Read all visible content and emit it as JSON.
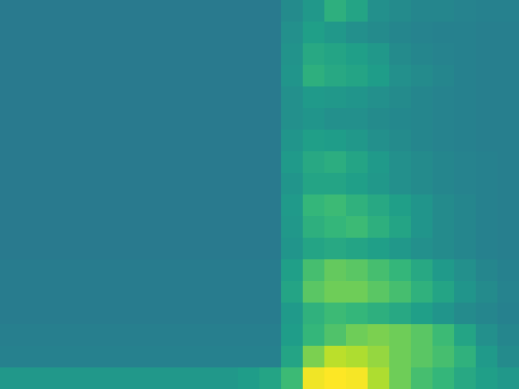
{
  "chart_data": {
    "type": "heatmap",
    "xlim": [
      0,
      24
    ],
    "ylim": [
      0,
      18
    ],
    "tick_labels": false,
    "color_range": [
      0,
      1
    ],
    "cells": [
      [
        0.41,
        0.41,
        0.41,
        0.41,
        0.41,
        0.41,
        0.41,
        0.41,
        0.41,
        0.41,
        0.41,
        0.41,
        0.41,
        0.48,
        0.53,
        0.63,
        0.58,
        0.5,
        0.48,
        0.46,
        0.46,
        0.45,
        0.44,
        0.44
      ],
      [
        0.41,
        0.41,
        0.41,
        0.41,
        0.41,
        0.41,
        0.41,
        0.41,
        0.41,
        0.41,
        0.41,
        0.41,
        0.41,
        0.5,
        0.56,
        0.53,
        0.5,
        0.48,
        0.46,
        0.45,
        0.44,
        0.44,
        0.43,
        0.43
      ],
      [
        0.41,
        0.41,
        0.41,
        0.41,
        0.41,
        0.41,
        0.41,
        0.41,
        0.41,
        0.41,
        0.41,
        0.41,
        0.41,
        0.51,
        0.6,
        0.58,
        0.56,
        0.53,
        0.48,
        0.46,
        0.45,
        0.44,
        0.43,
        0.43
      ],
      [
        0.41,
        0.41,
        0.41,
        0.41,
        0.41,
        0.41,
        0.41,
        0.41,
        0.41,
        0.41,
        0.41,
        0.41,
        0.41,
        0.52,
        0.63,
        0.6,
        0.58,
        0.55,
        0.5,
        0.48,
        0.46,
        0.44,
        0.43,
        0.43
      ],
      [
        0.41,
        0.41,
        0.41,
        0.41,
        0.41,
        0.41,
        0.41,
        0.41,
        0.41,
        0.41,
        0.41,
        0.41,
        0.41,
        0.5,
        0.54,
        0.53,
        0.52,
        0.5,
        0.48,
        0.46,
        0.45,
        0.44,
        0.43,
        0.43
      ],
      [
        0.41,
        0.41,
        0.41,
        0.41,
        0.41,
        0.41,
        0.41,
        0.41,
        0.41,
        0.41,
        0.41,
        0.41,
        0.41,
        0.5,
        0.52,
        0.5,
        0.5,
        0.48,
        0.47,
        0.46,
        0.45,
        0.44,
        0.43,
        0.43
      ],
      [
        0.41,
        0.41,
        0.41,
        0.41,
        0.41,
        0.41,
        0.41,
        0.41,
        0.41,
        0.41,
        0.41,
        0.41,
        0.41,
        0.52,
        0.56,
        0.55,
        0.53,
        0.5,
        0.48,
        0.46,
        0.45,
        0.44,
        0.43,
        0.43
      ],
      [
        0.41,
        0.41,
        0.41,
        0.41,
        0.41,
        0.41,
        0.41,
        0.41,
        0.41,
        0.41,
        0.41,
        0.41,
        0.41,
        0.54,
        0.6,
        0.62,
        0.58,
        0.54,
        0.5,
        0.48,
        0.46,
        0.45,
        0.44,
        0.43
      ],
      [
        0.41,
        0.41,
        0.41,
        0.41,
        0.41,
        0.41,
        0.41,
        0.41,
        0.41,
        0.41,
        0.41,
        0.41,
        0.41,
        0.52,
        0.58,
        0.58,
        0.56,
        0.53,
        0.5,
        0.48,
        0.46,
        0.45,
        0.44,
        0.43
      ],
      [
        0.41,
        0.41,
        0.41,
        0.41,
        0.41,
        0.41,
        0.41,
        0.41,
        0.41,
        0.41,
        0.41,
        0.41,
        0.41,
        0.54,
        0.66,
        0.68,
        0.64,
        0.6,
        0.56,
        0.52,
        0.48,
        0.46,
        0.44,
        0.43
      ],
      [
        0.41,
        0.41,
        0.41,
        0.41,
        0.41,
        0.41,
        0.41,
        0.41,
        0.41,
        0.41,
        0.41,
        0.41,
        0.41,
        0.53,
        0.63,
        0.66,
        0.68,
        0.63,
        0.58,
        0.52,
        0.48,
        0.46,
        0.44,
        0.43
      ],
      [
        0.41,
        0.41,
        0.41,
        0.41,
        0.41,
        0.41,
        0.41,
        0.41,
        0.41,
        0.41,
        0.41,
        0.41,
        0.41,
        0.52,
        0.58,
        0.6,
        0.58,
        0.56,
        0.53,
        0.5,
        0.48,
        0.46,
        0.44,
        0.43
      ],
      [
        0.42,
        0.42,
        0.42,
        0.42,
        0.42,
        0.42,
        0.42,
        0.42,
        0.42,
        0.42,
        0.42,
        0.42,
        0.42,
        0.56,
        0.7,
        0.76,
        0.74,
        0.7,
        0.66,
        0.6,
        0.54,
        0.5,
        0.46,
        0.44
      ],
      [
        0.42,
        0.42,
        0.42,
        0.42,
        0.42,
        0.42,
        0.42,
        0.42,
        0.42,
        0.42,
        0.42,
        0.42,
        0.42,
        0.58,
        0.74,
        0.78,
        0.78,
        0.74,
        0.7,
        0.64,
        0.58,
        0.52,
        0.48,
        0.45
      ],
      [
        0.42,
        0.42,
        0.42,
        0.42,
        0.42,
        0.42,
        0.42,
        0.42,
        0.42,
        0.42,
        0.42,
        0.42,
        0.42,
        0.54,
        0.64,
        0.68,
        0.66,
        0.63,
        0.6,
        0.56,
        0.52,
        0.48,
        0.46,
        0.44
      ],
      [
        0.43,
        0.43,
        0.43,
        0.43,
        0.43,
        0.43,
        0.43,
        0.43,
        0.43,
        0.43,
        0.43,
        0.43,
        0.43,
        0.55,
        0.66,
        0.72,
        0.78,
        0.8,
        0.78,
        0.74,
        0.68,
        0.58,
        0.5,
        0.46
      ],
      [
        0.44,
        0.44,
        0.44,
        0.44,
        0.44,
        0.44,
        0.44,
        0.44,
        0.44,
        0.44,
        0.44,
        0.44,
        0.44,
        0.58,
        0.8,
        0.9,
        0.88,
        0.84,
        0.78,
        0.74,
        0.7,
        0.64,
        0.54,
        0.48
      ],
      [
        0.53,
        0.53,
        0.53,
        0.53,
        0.53,
        0.53,
        0.53,
        0.53,
        0.53,
        0.53,
        0.53,
        0.55,
        0.58,
        0.68,
        0.98,
        1.0,
        0.99,
        0.88,
        0.78,
        0.7,
        0.66,
        0.6,
        0.56,
        0.53
      ]
    ]
  }
}
